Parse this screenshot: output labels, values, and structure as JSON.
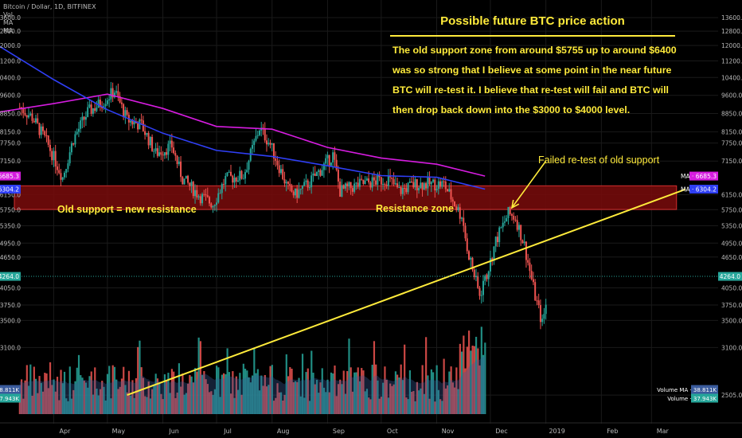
{
  "header": {
    "symbol": "Bitcoin / Dollar, 1D, BITFINEX",
    "indicators": [
      "Vol",
      "MA",
      "MA"
    ]
  },
  "annotations": {
    "title": "Possible future BTC price action",
    "body_lines": [
      "The old support zone from around $5755 up to around $6400",
      "was so strong that I believe at some point in the near future",
      "BTC will re-test it. I believe that re-test will fail and BTC will",
      "then drop back down into the $3000 to $4000 level."
    ],
    "failed_retest": "Failed re-test of old support",
    "old_support": "Old support = new resistance",
    "resistance_zone": "Resistance zone"
  },
  "colors": {
    "background": "#000000",
    "up": "#26a69a",
    "down": "#ef5350",
    "ma_fast": "#2f3ff5",
    "ma_slow": "#d61ce0",
    "annotation": "#ffeb3b",
    "zone_fill": "#7a0c0c",
    "last_price": "#26a69a"
  },
  "chart_data": {
    "type": "candlestick",
    "title": "Bitcoin / Dollar, 1D, BITFINEX",
    "scale": "log",
    "ylim": [
      2300,
      14000
    ],
    "y_ticks": [
      13600,
      12800,
      12000,
      11200,
      10400,
      9600,
      8850,
      8150,
      7750,
      7150,
      6150,
      5750,
      5350,
      4950,
      4650,
      4050,
      3750,
      3500,
      3100,
      2505
    ],
    "x_tick_labels": [
      "Apr",
      "May",
      "Jun",
      "Jul",
      "Aug",
      "Sep",
      "Oct",
      "Nov",
      "Dec",
      "2019",
      "Feb",
      "Mar"
    ],
    "x_tick_dates": [
      "2018-04-01",
      "2018-05-01",
      "2018-06-01",
      "2018-07-01",
      "2018-08-01",
      "2018-09-01",
      "2018-10-01",
      "2018-11-01",
      "2018-12-01",
      "2019-01-01",
      "2019-02-01",
      "2019-03-01"
    ],
    "series_anchors": [
      {
        "date": "2018-03-13",
        "close": 9100
      },
      {
        "date": "2018-03-20",
        "close": 8700
      },
      {
        "date": "2018-03-28",
        "close": 7800
      },
      {
        "date": "2018-04-06",
        "close": 6650
      },
      {
        "date": "2018-04-12",
        "close": 7900
      },
      {
        "date": "2018-04-20",
        "close": 8900
      },
      {
        "date": "2018-04-28",
        "close": 9300
      },
      {
        "date": "2018-05-05",
        "close": 9800
      },
      {
        "date": "2018-05-12",
        "close": 8600
      },
      {
        "date": "2018-05-20",
        "close": 8400
      },
      {
        "date": "2018-05-28",
        "close": 7400
      },
      {
        "date": "2018-06-06",
        "close": 7650
      },
      {
        "date": "2018-06-12",
        "close": 6600
      },
      {
        "date": "2018-06-22",
        "close": 6100
      },
      {
        "date": "2018-06-29",
        "close": 5900
      },
      {
        "date": "2018-07-06",
        "close": 6600
      },
      {
        "date": "2018-07-16",
        "close": 6700
      },
      {
        "date": "2018-07-25",
        "close": 8300
      },
      {
        "date": "2018-07-31",
        "close": 7700
      },
      {
        "date": "2018-08-10",
        "close": 6300
      },
      {
        "date": "2018-08-14",
        "close": 6150
      },
      {
        "date": "2018-08-22",
        "close": 6500
      },
      {
        "date": "2018-08-30",
        "close": 7000
      },
      {
        "date": "2018-09-04",
        "close": 7350
      },
      {
        "date": "2018-09-08",
        "close": 6250
      },
      {
        "date": "2018-09-20",
        "close": 6450
      },
      {
        "date": "2018-10-05",
        "close": 6600
      },
      {
        "date": "2018-10-11",
        "close": 6250
      },
      {
        "date": "2018-10-20",
        "close": 6450
      },
      {
        "date": "2018-11-05",
        "close": 6450
      },
      {
        "date": "2018-11-14",
        "close": 5650
      },
      {
        "date": "2018-11-19",
        "close": 4700
      },
      {
        "date": "2018-11-25",
        "close": 3900
      },
      {
        "date": "2018-11-28",
        "close": 4250
      }
    ],
    "projection_anchors": [
      {
        "date": "2018-11-29",
        "close": 4300
      },
      {
        "date": "2018-12-04",
        "close": 5000
      },
      {
        "date": "2018-12-11",
        "close": 5650
      },
      {
        "date": "2018-12-15",
        "close": 5550
      },
      {
        "date": "2018-12-20",
        "close": 4900
      },
      {
        "date": "2018-12-26",
        "close": 3900
      },
      {
        "date": "2018-12-30",
        "close": 3450
      },
      {
        "date": "2019-01-01",
        "close": 3750
      }
    ],
    "ma_fast": [
      {
        "date": "2018-03-01",
        "value": 12000
      },
      {
        "date": "2018-04-01",
        "value": 10300
      },
      {
        "date": "2018-05-01",
        "value": 9000
      },
      {
        "date": "2018-06-01",
        "value": 8100
      },
      {
        "date": "2018-07-01",
        "value": 7500
      },
      {
        "date": "2018-08-01",
        "value": 7300
      },
      {
        "date": "2018-09-01",
        "value": 7000
      },
      {
        "date": "2018-10-01",
        "value": 6700
      },
      {
        "date": "2018-11-01",
        "value": 6650
      },
      {
        "date": "2018-11-28",
        "value": 6304.2
      }
    ],
    "ma_slow": [
      {
        "date": "2018-03-01",
        "value": 8900
      },
      {
        "date": "2018-04-01",
        "value": 9250
      },
      {
        "date": "2018-05-01",
        "value": 9650
      },
      {
        "date": "2018-06-01",
        "value": 9050
      },
      {
        "date": "2018-07-01",
        "value": 8350
      },
      {
        "date": "2018-08-01",
        "value": 8250
      },
      {
        "date": "2018-09-01",
        "value": 7600
      },
      {
        "date": "2018-10-01",
        "value": 7250
      },
      {
        "date": "2018-11-01",
        "value": 7050
      },
      {
        "date": "2018-11-28",
        "value": 6685.3
      }
    ],
    "resistance_zone": {
      "from_date": "2018-03-10",
      "to_date": "2019-03-15",
      "low": 5755,
      "high": 6400
    },
    "trendline": [
      {
        "date": "2018-05-12",
        "value": 2505
      },
      {
        "date": "2019-03-20",
        "value": 6300
      }
    ],
    "arrow": {
      "from": {
        "date": "2019-01-01",
        "value": 7150
      },
      "to": {
        "date": "2018-12-13",
        "value": 5800
      }
    },
    "price_labels": {
      "ma_slow": {
        "label": "MA",
        "value": "6685.3"
      },
      "ma_fast": {
        "label": "MA",
        "value": "6304.2"
      },
      "last": {
        "value": "4264.0"
      },
      "volume_ma": {
        "label": "Volume MA",
        "value": "38.811K"
      },
      "volume": {
        "label": "Volume",
        "value": "37.943K"
      }
    }
  }
}
